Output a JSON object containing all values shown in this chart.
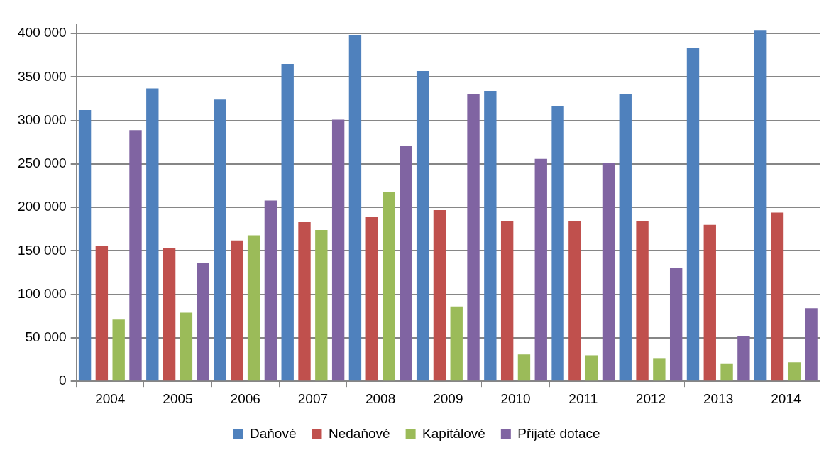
{
  "chart_data": {
    "type": "bar",
    "categories": [
      "2004",
      "2005",
      "2006",
      "2007",
      "2008",
      "2009",
      "2010",
      "2011",
      "2012",
      "2013",
      "2014"
    ],
    "series": [
      {
        "name": "Daňové",
        "color": "#4f81bd",
        "values": [
          312000,
          337000,
          324000,
          365000,
          398000,
          357000,
          334000,
          317000,
          330000,
          383000,
          404000
        ]
      },
      {
        "name": "Nedaňové",
        "color": "#c0504d",
        "values": [
          156000,
          153000,
          162000,
          183000,
          189000,
          197000,
          184000,
          184000,
          184000,
          180000,
          194000
        ]
      },
      {
        "name": "Kapitálové",
        "color": "#9bbb59",
        "values": [
          71000,
          79000,
          168000,
          174000,
          218000,
          86000,
          31000,
          30000,
          26000,
          20000,
          22000
        ]
      },
      {
        "name": "Přijaté dotace",
        "color": "#8064a2",
        "values": [
          289000,
          136000,
          208000,
          301000,
          271000,
          330000,
          256000,
          251000,
          130000,
          52000,
          84000
        ]
      }
    ],
    "ylim": [
      0,
      410000
    ],
    "yticks": [
      {
        "value": 0,
        "label": "0"
      },
      {
        "value": 50000,
        "label": "50 000"
      },
      {
        "value": 100000,
        "label": "100 000"
      },
      {
        "value": 150000,
        "label": "150 000"
      },
      {
        "value": 200000,
        "label": "200 000"
      },
      {
        "value": 250000,
        "label": "250 000"
      },
      {
        "value": 300000,
        "label": "300 000"
      },
      {
        "value": 350000,
        "label": "350 000"
      },
      {
        "value": 400000,
        "label": "400 000"
      }
    ],
    "grid": "y",
    "legend": "bottom"
  }
}
